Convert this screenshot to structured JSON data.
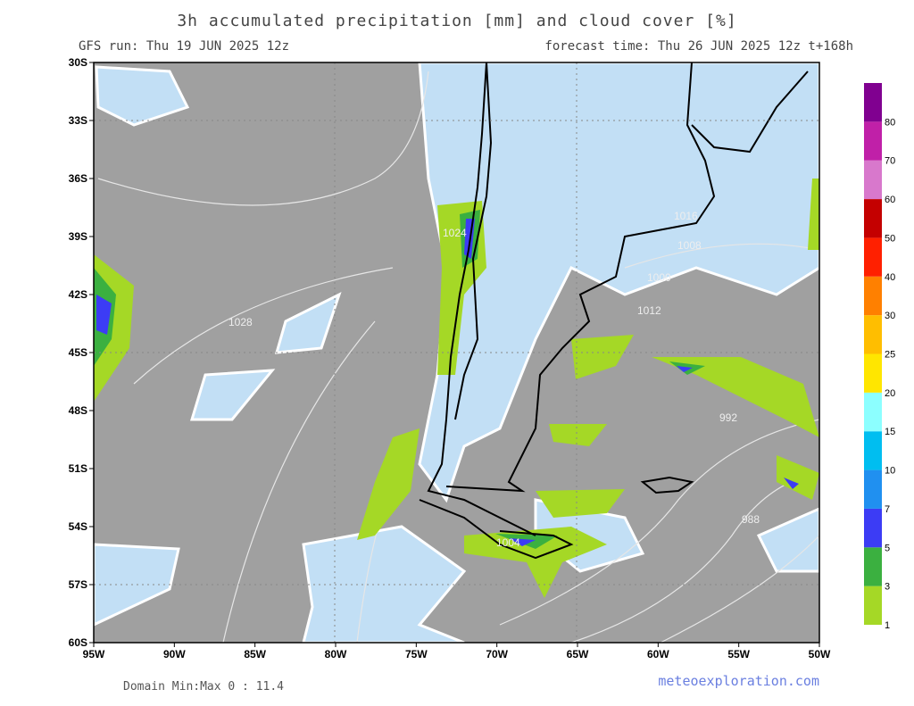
{
  "header": {
    "title": "3h accumulated precipitation [mm] and cloud cover [%]",
    "run": "GFS run: Thu 19 JUN 2025 12z",
    "forecast": "forecast time: Thu 26 JUN 2025 12z  t+168h"
  },
  "map": {
    "lat_labels": [
      "30S",
      "33S",
      "36S",
      "39S",
      "42S",
      "45S",
      "48S",
      "51S",
      "54S",
      "57S",
      "60S"
    ],
    "lon_labels": [
      "95W",
      "90W",
      "85W",
      "80W",
      "75W",
      "70W",
      "65W",
      "60W",
      "55W",
      "50W"
    ],
    "isobar_labels": [
      "1028",
      "1024",
      "1016",
      "1008",
      "1000",
      "1012",
      "992",
      "988",
      "1004"
    ]
  },
  "colorbar": [
    {
      "label": "1",
      "color": "#a5d826"
    },
    {
      "label": "3",
      "color": "#3bb040"
    },
    {
      "label": "5",
      "color": "#3c3cf5"
    },
    {
      "label": "7",
      "color": "#2090f0"
    },
    {
      "label": "10",
      "color": "#00bef0"
    },
    {
      "label": "15",
      "color": "#8cffff"
    },
    {
      "label": "20",
      "color": "#ffe600"
    },
    {
      "label": "25",
      "color": "#ffbe00"
    },
    {
      "label": "30",
      "color": "#ff8000"
    },
    {
      "label": "40",
      "color": "#ff2000"
    },
    {
      "label": "50",
      "color": "#c40000"
    },
    {
      "label": "60",
      "color": "#d878cc"
    },
    {
      "label": "70",
      "color": "#c020a8"
    },
    {
      "label": "80",
      "color": "#800090"
    }
  ],
  "footer": {
    "domain": "Domain Min:Max 0 : 11.4",
    "credit": "meteoexploration.com"
  }
}
